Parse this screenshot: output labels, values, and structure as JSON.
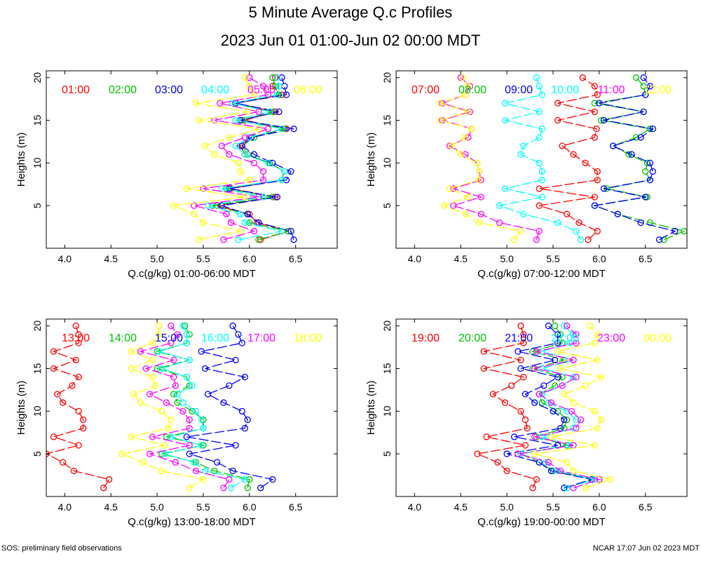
{
  "header": {
    "title": "5 Minute Average Q.c Profiles",
    "subtitle": "2023 Jun 01 01:00-Jun 02 00:00 MDT"
  },
  "footer": {
    "left": "SOS: preliminary field observations",
    "right": "NCAR 17:07 Jun 02 2023 MDT"
  },
  "colors": [
    "#ff0000",
    "#00c000",
    "#0000ff",
    "#00ffff",
    "#ff00ff",
    "#ffff00"
  ],
  "chart_data": [
    {
      "type": "line",
      "xlabel": "Q.c(g/kg) 01:00-06:00 MDT",
      "ylabel": "Heights (m)",
      "xlim": [
        3.8,
        6.95
      ],
      "ylim": [
        0,
        20.8
      ],
      "xticks": [
        "4.0",
        "4.5",
        "5.0",
        "5.5",
        "6.0",
        "6.5"
      ],
      "yticks": [
        "5",
        "10",
        "15",
        "20"
      ],
      "heights": [
        1,
        2,
        3,
        4,
        5,
        6,
        7,
        8,
        9,
        10,
        11,
        12,
        13,
        14,
        15,
        16,
        17,
        18,
        19,
        20
      ],
      "series": [
        {
          "name": "01:00",
          "values": [
            6.12,
            6.42,
            6.08,
            6.0,
            5.65,
            6.28,
            5.8,
            6.35,
            6.38,
            6.22,
            5.95,
            5.9,
            6.0,
            6.4,
            5.95,
            6.28,
            5.85,
            6.35,
            6.25,
            6.28
          ]
        },
        {
          "name": "02:00",
          "values": [
            6.1,
            6.42,
            6.0,
            5.98,
            5.6,
            6.25,
            5.75,
            6.35,
            6.38,
            6.22,
            5.98,
            5.92,
            6.05,
            6.38,
            5.92,
            6.25,
            5.82,
            6.32,
            6.28,
            6.25
          ]
        },
        {
          "name": "03:00",
          "values": [
            6.48,
            6.45,
            6.1,
            5.98,
            5.7,
            6.3,
            5.78,
            6.4,
            6.45,
            6.25,
            6.05,
            5.92,
            6.02,
            6.48,
            5.9,
            6.32,
            5.85,
            6.4,
            6.38,
            6.35
          ]
        },
        {
          "name": "04:00",
          "values": [
            5.88,
            6.35,
            5.95,
            5.9,
            5.55,
            6.15,
            5.7,
            6.35,
            6.38,
            6.2,
            5.95,
            5.85,
            6.0,
            6.35,
            5.85,
            6.22,
            5.82,
            6.3,
            6.32,
            6.3
          ]
        },
        {
          "name": "05:00",
          "values": [
            5.72,
            6.05,
            5.8,
            5.75,
            5.4,
            6.1,
            5.5,
            6.15,
            6.15,
            6.05,
            5.78,
            5.7,
            5.95,
            6.2,
            5.62,
            6.1,
            5.68,
            6.2,
            6.15,
            6.0
          ]
        },
        {
          "name": "06:00",
          "values": [
            5.45,
            5.9,
            5.5,
            5.4,
            5.18,
            5.95,
            5.32,
            6.0,
            5.9,
            5.88,
            5.62,
            5.52,
            5.78,
            6.1,
            5.45,
            5.98,
            5.42,
            6.05,
            6.0,
            5.95
          ]
        }
      ]
    },
    {
      "type": "line",
      "xlabel": "Q.c(g/kg) 07:00-12:00 MDT",
      "ylabel": "Heights (m)",
      "xlim": [
        3.8,
        6.95
      ],
      "ylim": [
        0,
        20.8
      ],
      "xticks": [
        "4.0",
        "4.5",
        "5.0",
        "5.5",
        "6.0",
        "6.5"
      ],
      "yticks": [
        "5",
        "10",
        "15",
        "20"
      ],
      "heights": [
        1,
        2,
        3,
        4,
        5,
        6,
        7,
        8,
        9,
        10,
        11,
        12,
        13,
        14,
        15,
        16,
        17,
        18,
        19,
        20
      ],
      "series": [
        {
          "name": "07:00",
          "values": [
            5.88,
            5.98,
            5.78,
            5.65,
            5.35,
            5.95,
            5.35,
            5.98,
            5.98,
            5.85,
            5.72,
            5.6,
            5.95,
            5.97,
            5.55,
            5.95,
            5.55,
            5.98,
            5.95,
            5.82
          ]
        },
        {
          "name": "08:00",
          "values": [
            6.7,
            6.92,
            6.55,
            6.2,
            5.95,
            6.52,
            6.08,
            6.55,
            6.5,
            6.52,
            6.32,
            6.15,
            6.4,
            6.55,
            6.02,
            6.48,
            5.95,
            6.5,
            6.48,
            6.4
          ]
        },
        {
          "name": "09:00",
          "values": [
            6.65,
            6.82,
            6.45,
            6.2,
            5.95,
            6.5,
            6.05,
            6.55,
            6.58,
            6.55,
            6.35,
            6.15,
            6.45,
            6.58,
            6.05,
            6.48,
            6.0,
            6.5,
            6.55,
            6.48
          ]
        },
        {
          "name": "10:00",
          "values": [
            5.8,
            5.75,
            5.55,
            5.18,
            4.92,
            5.38,
            4.98,
            5.38,
            5.38,
            5.35,
            5.15,
            5.18,
            5.35,
            5.38,
            4.98,
            5.35,
            4.98,
            5.38,
            5.35,
            5.32
          ]
        },
        {
          "name": "11:00",
          "values": [
            5.32,
            5.35,
            4.92,
            4.72,
            4.42,
            4.72,
            4.42,
            4.72,
            4.7,
            4.68,
            4.55,
            4.38,
            4.58,
            4.62,
            4.3,
            4.6,
            4.3,
            4.55,
            4.6,
            4.5
          ]
        },
        {
          "name": "12:00",
          "values": [
            5.08,
            5.15,
            4.7,
            4.55,
            4.32,
            4.58,
            4.38,
            4.7,
            4.7,
            4.68,
            4.5,
            4.4,
            4.55,
            4.62,
            4.28,
            4.58,
            4.28,
            4.55,
            4.58,
            4.52
          ]
        }
      ]
    },
    {
      "type": "line",
      "xlabel": "Q.c(g/kg) 13:00-18:00 MDT",
      "ylabel": "Heights (m)",
      "xlim": [
        3.8,
        6.95
      ],
      "ylim": [
        0,
        20.8
      ],
      "xticks": [
        "4.0",
        "4.5",
        "5.0",
        "5.5",
        "6.0",
        "6.5"
      ],
      "yticks": [
        "5",
        "10",
        "15",
        "20"
      ],
      "heights": [
        1,
        2,
        3,
        4,
        5,
        6,
        7,
        8,
        9,
        10,
        11,
        12,
        13,
        14,
        15,
        16,
        17,
        18,
        19,
        20
      ],
      "series": [
        {
          "name": "13:00",
          "values": [
            4.42,
            4.48,
            4.1,
            3.98,
            3.8,
            4.15,
            3.88,
            4.2,
            4.2,
            4.15,
            3.98,
            3.92,
            4.08,
            4.15,
            3.88,
            4.12,
            3.88,
            4.15,
            4.15,
            4.12
          ]
        },
        {
          "name": "14:00",
          "values": [
            5.98,
            6.0,
            5.62,
            5.42,
            5.05,
            5.5,
            5.1,
            5.5,
            5.5,
            5.38,
            5.22,
            5.18,
            5.35,
            5.32,
            5.0,
            5.35,
            5.0,
            5.32,
            5.35,
            5.3
          ]
        },
        {
          "name": "15:00",
          "values": [
            6.12,
            6.25,
            5.82,
            5.65,
            5.35,
            5.85,
            5.32,
            5.95,
            5.98,
            5.92,
            5.72,
            5.55,
            5.78,
            5.95,
            5.52,
            5.85,
            5.48,
            5.92,
            5.88,
            5.82
          ]
        },
        {
          "name": "16:00",
          "values": [
            5.8,
            5.95,
            5.52,
            5.4,
            5.08,
            5.48,
            5.15,
            5.5,
            5.48,
            5.42,
            5.28,
            5.22,
            5.38,
            5.32,
            5.05,
            5.35,
            5.02,
            5.32,
            5.32,
            5.28
          ]
        },
        {
          "name": "17:00",
          "values": [
            5.72,
            5.78,
            5.42,
            5.2,
            4.92,
            5.35,
            4.95,
            5.35,
            5.35,
            5.28,
            5.1,
            4.92,
            5.2,
            5.18,
            4.88,
            5.18,
            4.82,
            5.15,
            5.22,
            5.15
          ]
        },
        {
          "name": "18:00",
          "values": [
            5.35,
            5.5,
            5.05,
            4.85,
            4.62,
            5.08,
            4.72,
            5.12,
            5.15,
            5.05,
            4.82,
            4.75,
            4.98,
            4.95,
            4.72,
            4.95,
            4.72,
            4.95,
            5.02,
            5.02
          ]
        }
      ]
    },
    {
      "type": "line",
      "xlabel": "Q.c(g/kg) 19:00-00:00 MDT",
      "ylabel": "Heights (m)",
      "xlim": [
        3.8,
        6.95
      ],
      "ylim": [
        0,
        20.8
      ],
      "xticks": [
        "4.0",
        "4.5",
        "5.0",
        "5.5",
        "6.0",
        "6.5"
      ],
      "yticks": [
        "5",
        "10",
        "15",
        "20"
      ],
      "heights": [
        1,
        2,
        3,
        4,
        5,
        6,
        7,
        8,
        9,
        10,
        11,
        12,
        13,
        14,
        15,
        16,
        17,
        18,
        19,
        20
      ],
      "series": [
        {
          "name": "19:00",
          "values": [
            5.28,
            5.32,
            5.0,
            4.9,
            4.68,
            5.2,
            4.78,
            5.22,
            5.2,
            5.15,
            4.98,
            4.85,
            5.05,
            5.18,
            4.75,
            5.15,
            4.75,
            5.18,
            5.18,
            5.15
          ]
        },
        {
          "name": "20:00",
          "values": [
            5.62,
            5.95,
            5.5,
            5.35,
            5.15,
            5.65,
            5.32,
            5.62,
            5.65,
            5.55,
            5.38,
            5.35,
            5.52,
            5.6,
            5.28,
            5.62,
            5.28,
            5.6,
            5.58,
            5.52
          ]
        },
        {
          "name": "21:00",
          "values": [
            5.62,
            5.92,
            5.48,
            5.35,
            5.0,
            5.55,
            5.08,
            5.58,
            5.62,
            5.5,
            5.3,
            5.2,
            5.4,
            5.55,
            5.15,
            5.52,
            5.12,
            5.55,
            5.55,
            5.45
          ]
        },
        {
          "name": "22:00",
          "values": [
            5.65,
            5.95,
            5.55,
            5.42,
            5.15,
            5.68,
            5.38,
            5.72,
            5.75,
            5.65,
            5.45,
            5.38,
            5.6,
            5.72,
            5.38,
            5.72,
            5.38,
            5.68,
            5.72,
            5.62
          ]
        },
        {
          "name": "23:00",
          "values": [
            5.72,
            6.0,
            5.58,
            5.45,
            5.12,
            5.72,
            5.3,
            5.75,
            5.8,
            5.7,
            5.48,
            5.35,
            5.6,
            5.75,
            5.3,
            5.72,
            5.32,
            5.75,
            5.75,
            5.65
          ]
        },
        {
          "name": "00:00",
          "values": [
            5.85,
            6.12,
            5.72,
            5.65,
            5.3,
            5.95,
            5.48,
            5.98,
            6.02,
            5.95,
            5.72,
            5.62,
            5.85,
            6.02,
            5.58,
            5.98,
            5.55,
            5.95,
            5.98,
            5.9
          ]
        }
      ]
    }
  ]
}
